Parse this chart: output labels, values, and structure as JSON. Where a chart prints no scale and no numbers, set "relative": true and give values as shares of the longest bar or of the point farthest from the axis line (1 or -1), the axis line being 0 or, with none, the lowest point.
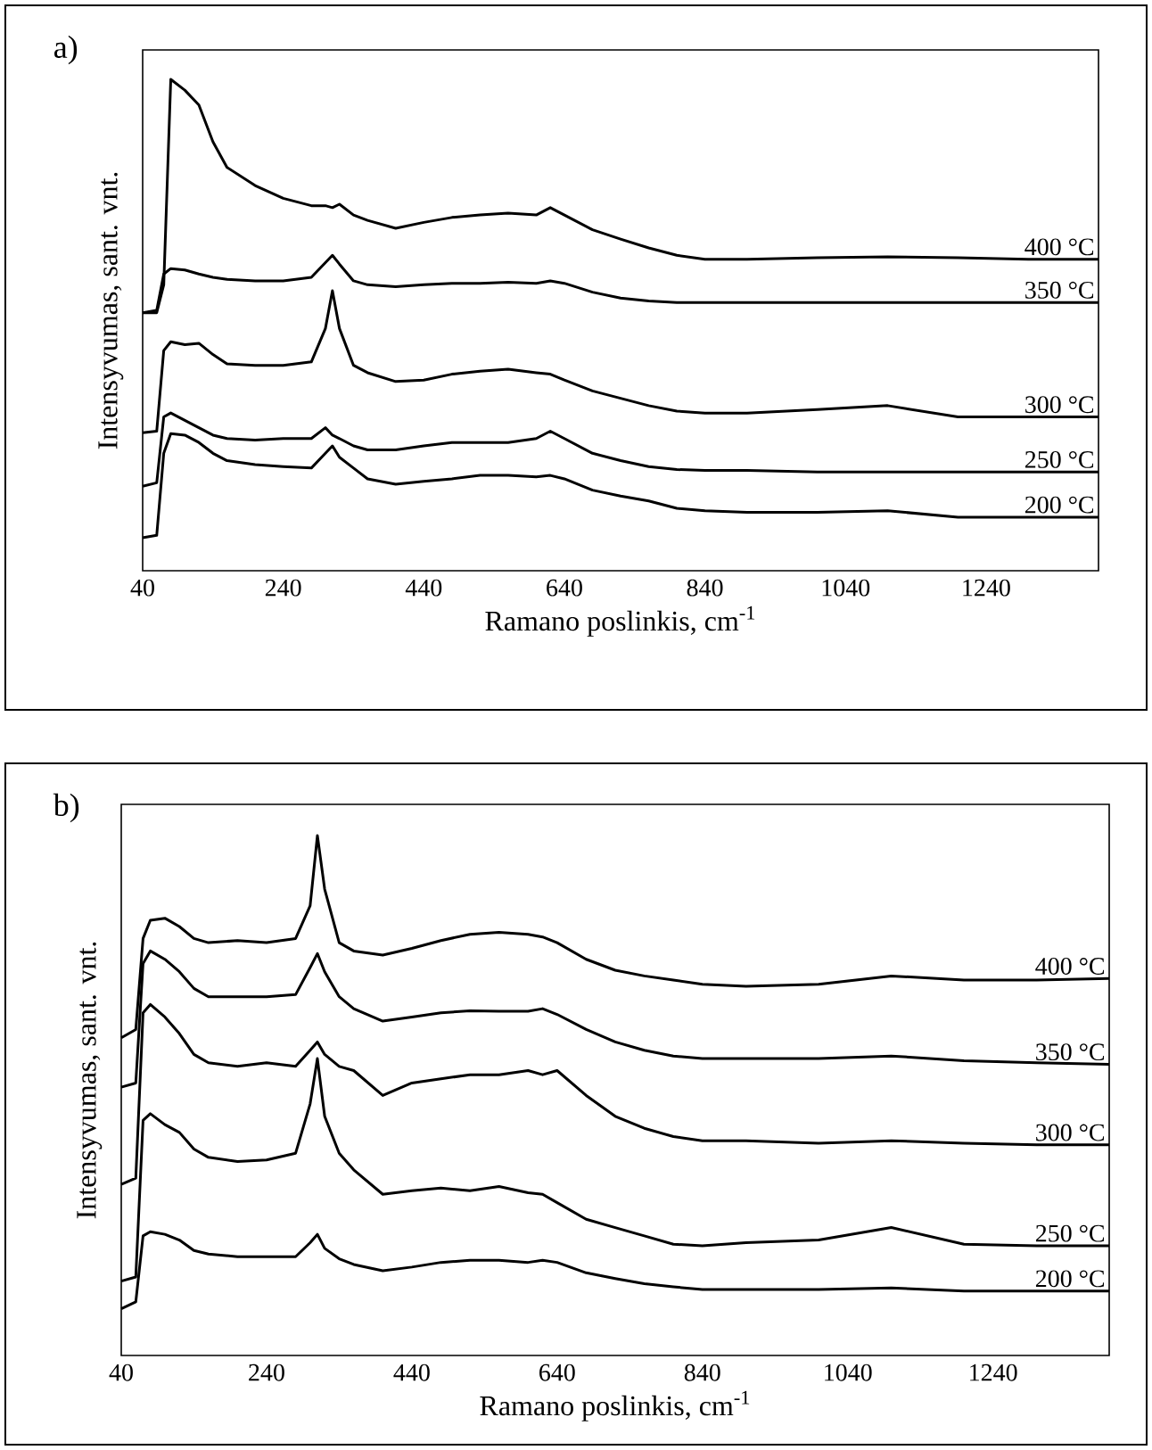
{
  "chart_data": [
    {
      "type": "line",
      "title": "a)",
      "xlabel": "Ramano poslinkis, cm$^{-1}$",
      "ylabel": "Intensyvumas,  sant. vnt.",
      "relative": true,
      "xlim": [
        40,
        1400
      ],
      "xticks": [
        40,
        240,
        440,
        640,
        840,
        1040,
        1240
      ],
      "x": [
        40,
        60,
        70,
        80,
        100,
        120,
        140,
        160,
        200,
        240,
        280,
        300,
        310,
        320,
        340,
        360,
        400,
        440,
        480,
        520,
        560,
        600,
        620,
        640,
        680,
        720,
        760,
        800,
        840,
        900,
        1000,
        1100,
        1200,
        1300,
        1400
      ],
      "series": [
        {
          "name": "400 °C",
          "color": "#000000",
          "values": [
            0.525,
            0.525,
            0.582,
            1.0,
            0.978,
            0.948,
            0.873,
            0.821,
            0.784,
            0.758,
            0.743,
            0.743,
            0.739,
            0.746,
            0.724,
            0.713,
            0.697,
            0.709,
            0.719,
            0.724,
            0.728,
            0.724,
            0.739,
            0.724,
            0.694,
            0.675,
            0.657,
            0.642,
            0.634,
            0.634,
            0.637,
            0.639,
            0.637,
            0.634,
            0.634
          ]
        },
        {
          "name": "350 °C",
          "color": "#000000",
          "values": [
            0.525,
            0.53,
            0.604,
            0.615,
            0.612,
            0.604,
            0.597,
            0.593,
            0.59,
            0.59,
            0.597,
            0.627,
            0.642,
            0.624,
            0.59,
            0.582,
            0.578,
            0.582,
            0.585,
            0.585,
            0.587,
            0.585,
            0.59,
            0.585,
            0.567,
            0.555,
            0.549,
            0.546,
            0.546,
            0.546,
            0.546,
            0.546,
            0.546,
            0.546,
            0.546
          ]
        },
        {
          "name": "300 °C",
          "color": "#000000",
          "values": [
            0.281,
            0.284,
            0.448,
            0.466,
            0.46,
            0.463,
            0.44,
            0.421,
            0.418,
            0.418,
            0.425,
            0.493,
            0.57,
            0.493,
            0.418,
            0.403,
            0.385,
            0.388,
            0.4,
            0.406,
            0.41,
            0.403,
            0.4,
            0.388,
            0.366,
            0.351,
            0.336,
            0.325,
            0.321,
            0.321,
            0.328,
            0.336,
            0.313,
            0.313,
            0.313
          ]
        },
        {
          "name": "250 °C",
          "color": "#000000",
          "values": [
            0.172,
            0.179,
            0.313,
            0.321,
            0.306,
            0.291,
            0.276,
            0.269,
            0.266,
            0.269,
            0.269,
            0.291,
            0.276,
            0.269,
            0.254,
            0.246,
            0.246,
            0.254,
            0.261,
            0.261,
            0.261,
            0.269,
            0.284,
            0.269,
            0.239,
            0.224,
            0.212,
            0.206,
            0.204,
            0.204,
            0.201,
            0.201,
            0.201,
            0.201,
            0.201
          ]
        },
        {
          "name": "200 °C",
          "color": "#000000",
          "values": [
            0.067,
            0.072,
            0.239,
            0.279,
            0.276,
            0.261,
            0.239,
            0.224,
            0.216,
            0.212,
            0.209,
            0.239,
            0.254,
            0.231,
            0.209,
            0.187,
            0.176,
            0.182,
            0.187,
            0.194,
            0.194,
            0.191,
            0.194,
            0.187,
            0.164,
            0.152,
            0.142,
            0.127,
            0.122,
            0.119,
            0.119,
            0.122,
            0.109,
            0.109,
            0.109
          ]
        }
      ]
    },
    {
      "type": "line",
      "title": "b)",
      "xlabel": "Ramano poslinkis, cm$^{-1}$",
      "ylabel": "Intensyvumas,  sant. vnt.",
      "relative": true,
      "xlim": [
        40,
        1400
      ],
      "xticks": [
        40,
        240,
        440,
        640,
        840,
        1040,
        1240
      ],
      "x": [
        40,
        60,
        70,
        80,
        100,
        120,
        140,
        160,
        200,
        240,
        280,
        300,
        310,
        320,
        340,
        360,
        400,
        440,
        480,
        520,
        560,
        600,
        620,
        640,
        680,
        720,
        760,
        800,
        840,
        900,
        1000,
        1100,
        1200,
        1300,
        1400
      ],
      "series": [
        {
          "name": "400 °C",
          "color": "#000000",
          "values": [
            0.611,
            0.627,
            0.802,
            0.837,
            0.841,
            0.825,
            0.802,
            0.794,
            0.798,
            0.794,
            0.802,
            0.865,
            1.0,
            0.897,
            0.794,
            0.778,
            0.77,
            0.783,
            0.798,
            0.81,
            0.814,
            0.81,
            0.805,
            0.794,
            0.762,
            0.741,
            0.73,
            0.722,
            0.714,
            0.71,
            0.714,
            0.73,
            0.722,
            0.722,
            0.725
          ]
        },
        {
          "name": "350 °C",
          "color": "#000000",
          "values": [
            0.516,
            0.524,
            0.754,
            0.778,
            0.762,
            0.738,
            0.706,
            0.69,
            0.69,
            0.69,
            0.694,
            0.746,
            0.773,
            0.738,
            0.69,
            0.667,
            0.643,
            0.651,
            0.659,
            0.663,
            0.662,
            0.662,
            0.667,
            0.656,
            0.627,
            0.603,
            0.587,
            0.576,
            0.571,
            0.571,
            0.571,
            0.576,
            0.567,
            0.563,
            0.56
          ]
        },
        {
          "name": "300 °C",
          "color": "#000000",
          "values": [
            0.329,
            0.341,
            0.659,
            0.675,
            0.651,
            0.619,
            0.579,
            0.563,
            0.556,
            0.563,
            0.556,
            0.587,
            0.603,
            0.579,
            0.556,
            0.548,
            0.5,
            0.524,
            0.532,
            0.54,
            0.54,
            0.548,
            0.54,
            0.548,
            0.5,
            0.46,
            0.437,
            0.421,
            0.413,
            0.413,
            0.408,
            0.413,
            0.408,
            0.405,
            0.405
          ]
        },
        {
          "name": "250 °C",
          "color": "#000000",
          "values": [
            0.143,
            0.151,
            0.452,
            0.465,
            0.444,
            0.429,
            0.397,
            0.381,
            0.373,
            0.376,
            0.389,
            0.484,
            0.571,
            0.46,
            0.389,
            0.357,
            0.31,
            0.317,
            0.322,
            0.317,
            0.325,
            0.313,
            0.31,
            0.294,
            0.262,
            0.246,
            0.23,
            0.214,
            0.211,
            0.217,
            0.222,
            0.246,
            0.214,
            0.211,
            0.211
          ]
        },
        {
          "name": "200 °C",
          "color": "#000000",
          "values": [
            0.09,
            0.103,
            0.23,
            0.238,
            0.233,
            0.222,
            0.202,
            0.195,
            0.19,
            0.19,
            0.19,
            0.217,
            0.233,
            0.206,
            0.186,
            0.175,
            0.163,
            0.17,
            0.179,
            0.183,
            0.183,
            0.179,
            0.183,
            0.179,
            0.159,
            0.148,
            0.138,
            0.132,
            0.127,
            0.127,
            0.127,
            0.13,
            0.124,
            0.124,
            0.124
          ]
        }
      ]
    }
  ]
}
